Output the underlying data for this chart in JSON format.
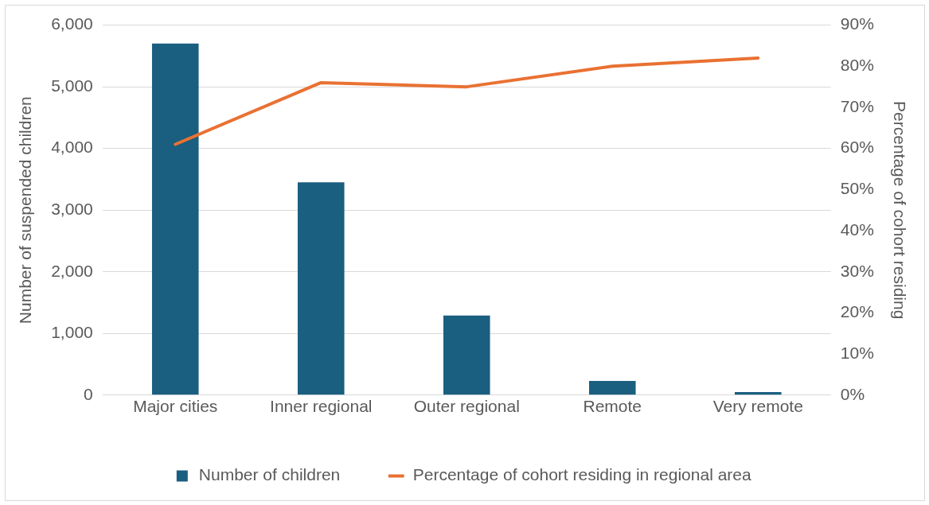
{
  "chart_data": {
    "type": "bar",
    "categories": [
      "Major cities",
      "Inner regional",
      "Outer regional",
      "Remote",
      "Very remote"
    ],
    "series": [
      {
        "name": "Number of children",
        "color": "#1a5e80",
        "values": [
          5700,
          3450,
          1290,
          230,
          50
        ]
      },
      {
        "name": "Percentage of cohort residing in regional area",
        "type": "line",
        "axis": "y2",
        "color": "#e97132",
        "values": [
          61,
          76,
          75,
          80,
          82
        ]
      }
    ],
    "ylabel": "Number of suspended children",
    "y2label": "Percentage of cohort residing",
    "ylim": [
      0,
      6000
    ],
    "yticks": [
      {
        "value": 0,
        "label": "0"
      },
      {
        "value": 1000,
        "label": "1,000"
      },
      {
        "value": 2000,
        "label": "2,000"
      },
      {
        "value": 3000,
        "label": "3,000"
      },
      {
        "value": 4000,
        "label": "4,000"
      },
      {
        "value": 5000,
        "label": "5,000"
      },
      {
        "value": 6000,
        "label": "6,000"
      }
    ],
    "y2lim": [
      0,
      90
    ],
    "y2ticks": [
      {
        "value": 0,
        "label": "0%"
      },
      {
        "value": 10,
        "label": "10%"
      },
      {
        "value": 20,
        "label": "20%"
      },
      {
        "value": 30,
        "label": "30%"
      },
      {
        "value": 40,
        "label": "40%"
      },
      {
        "value": 50,
        "label": "50%"
      },
      {
        "value": 60,
        "label": "60%"
      },
      {
        "value": 70,
        "label": "70%"
      },
      {
        "value": 80,
        "label": "80%"
      },
      {
        "value": 90,
        "label": "90%"
      }
    ],
    "grid": "y",
    "legend": "bottom",
    "marker": "none",
    "line_style": "solid"
  }
}
